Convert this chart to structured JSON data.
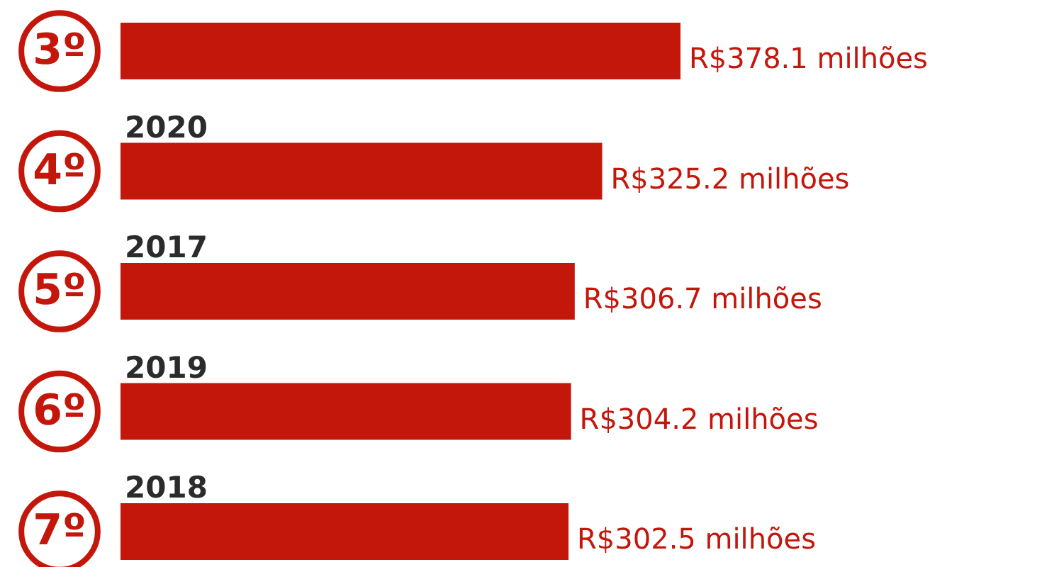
{
  "chart_data": {
    "type": "bar",
    "orientation": "horizontal",
    "color": "#c4170c",
    "categories": [
      null,
      "2020",
      "2017",
      "2019",
      "2018"
    ],
    "values": [
      378.1,
      325.2,
      306.7,
      304.2,
      302.5
    ],
    "value_labels": [
      "R$378.1 milhões",
      "R$325.2 milhões",
      "R$306.7 milhões",
      "R$304.2 milhões",
      "R$302.5 milhões"
    ],
    "annotations": [
      "3º",
      "4º",
      "5º",
      "6º",
      "7º"
    ]
  }
}
